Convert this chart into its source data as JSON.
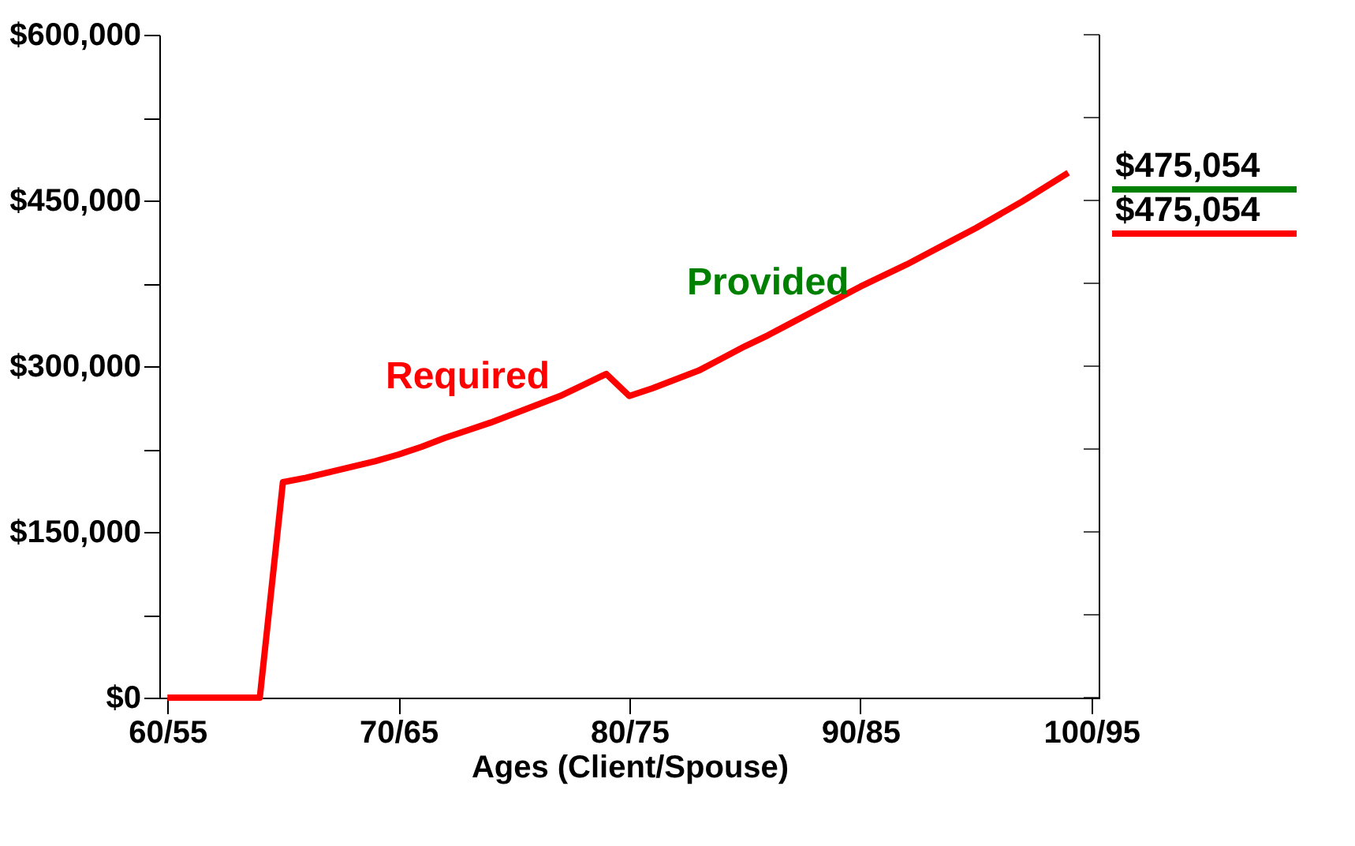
{
  "chart_data": {
    "type": "line",
    "xlabel": "Ages (Client/Spouse)",
    "categories": [
      "60/55",
      null,
      null,
      null,
      null,
      null,
      null,
      null,
      null,
      null,
      "70/65",
      null,
      null,
      null,
      null,
      null,
      null,
      null,
      null,
      null,
      "80/75",
      null,
      null,
      null,
      null,
      null,
      null,
      null,
      null,
      null,
      "90/85",
      null,
      null,
      null,
      null,
      null,
      null,
      null,
      null,
      null,
      "100/95"
    ],
    "series": [
      {
        "name": "Provided",
        "color": "#008000",
        "values": [
          null,
          null,
          null,
          null,
          null,
          null,
          null,
          null,
          null,
          null,
          null,
          null,
          null,
          null,
          null,
          null,
          null,
          null,
          null,
          null,
          null,
          null,
          null,
          null,
          null,
          null,
          null,
          null,
          null,
          null,
          null,
          null,
          null,
          null,
          null,
          null,
          null,
          null,
          null,
          null,
          null
        ]
      },
      {
        "name": "Required",
        "color": "#ff0000",
        "values": [
          0,
          0,
          0,
          0,
          0,
          195000,
          199000,
          204000,
          209000,
          214000,
          220000,
          227000,
          235000,
          242000,
          249000,
          257000,
          265000,
          273000,
          283000,
          293000,
          273000,
          280000,
          288000,
          296000,
          307000,
          318000,
          328000,
          339000,
          350000,
          361000,
          372000,
          382000,
          392000,
          403000,
          414000,
          425000,
          437000,
          449000,
          462000,
          475054,
          null
        ]
      }
    ],
    "annotations": [
      "$475,054",
      "$475,054"
    ],
    "ylim": [
      0,
      600000
    ],
    "yticks": [
      {
        "value": 0,
        "label": "$0"
      },
      {
        "value": 75000,
        "label": null
      },
      {
        "value": 150000,
        "label": "$150,000"
      },
      {
        "value": 225000,
        "label": null
      },
      {
        "value": 300000,
        "label": "$300,000"
      },
      {
        "value": 375000,
        "label": null
      },
      {
        "value": 450000,
        "label": "$450,000"
      },
      {
        "value": 525000,
        "label": null
      },
      {
        "value": 600000,
        "label": "$600,000"
      }
    ],
    "grid": false,
    "marker": "none",
    "line_style": "solid"
  }
}
